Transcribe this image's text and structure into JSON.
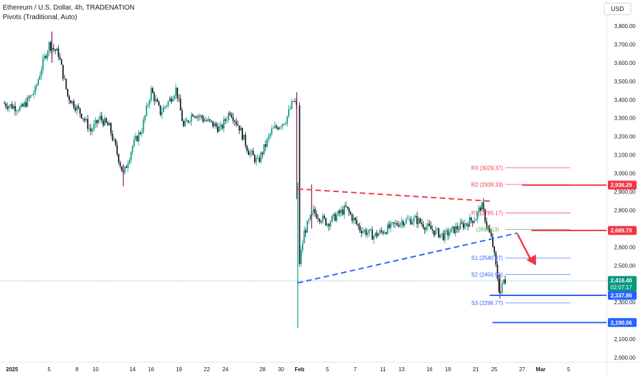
{
  "header": {
    "title": "Ethereum / U.S. Dollar, 4h, TRADENATION",
    "indicator": "Pivots (Traditional, Auto)",
    "currency": "USD"
  },
  "colors": {
    "up": "#26a69a",
    "down": "#ef5350",
    "candle_up": "#089981",
    "candle_down": "#131722",
    "resistance": "#f23645",
    "support": "#2962ff",
    "pivot": "#4caf50"
  },
  "chart_data": {
    "type": "candlestick",
    "ylim": [
      2000,
      3900
    ],
    "y_ticks": [
      2000,
      2100,
      2200,
      2300,
      2400,
      2500,
      2600,
      2700,
      2800,
      2900,
      3000,
      3100,
      3200,
      3300,
      3400,
      3500,
      3600,
      3700,
      3800
    ],
    "y_tick_labels": [
      "2,000.00",
      "2,100.00",
      "2,200.00",
      "2,300.00",
      "2,400.00",
      "2,500.00",
      "2,600.00",
      "2,700.00",
      "2,800.00",
      "2,900.00",
      "3,000.00",
      "3,100.00",
      "3,200.00",
      "3,300.00",
      "3,400.00",
      "3,500.00",
      "3,600.00",
      "3,700.00",
      "3,800.00"
    ],
    "x_ticks": [
      {
        "day": 1,
        "label": "2025"
      },
      {
        "day": 5,
        "label": "5"
      },
      {
        "day": 8,
        "label": "8"
      },
      {
        "day": 10,
        "label": "10"
      },
      {
        "day": 14,
        "label": "14"
      },
      {
        "day": 16,
        "label": "16"
      },
      {
        "day": 19,
        "label": "19"
      },
      {
        "day": 22,
        "label": "22"
      },
      {
        "day": 24,
        "label": "24"
      },
      {
        "day": 28,
        "label": "28"
      },
      {
        "day": 30,
        "label": "30"
      },
      {
        "day": 32,
        "label": "Feb"
      },
      {
        "day": 35,
        "label": "5"
      },
      {
        "day": 38,
        "label": "7"
      },
      {
        "day": 41,
        "label": "11"
      },
      {
        "day": 43,
        "label": "13"
      },
      {
        "day": 46,
        "label": "16"
      },
      {
        "day": 48,
        "label": "19"
      },
      {
        "day": 51,
        "label": "21"
      },
      {
        "day": 53,
        "label": "25"
      },
      {
        "day": 56,
        "label": "27"
      },
      {
        "day": 58,
        "label": "Mar"
      },
      {
        "day": 61,
        "label": "5"
      }
    ],
    "price_path": [
      [
        0,
        3380
      ],
      [
        2,
        3350
      ],
      [
        3.5,
        3450
      ],
      [
        4.2,
        3580
      ],
      [
        5,
        3700
      ],
      [
        6,
        3650
      ],
      [
        7,
        3420
      ],
      [
        8.5,
        3320
      ],
      [
        9.5,
        3230
      ],
      [
        10.5,
        3300
      ],
      [
        11.5,
        3250
      ],
      [
        12.5,
        3080
      ],
      [
        13,
        2990
      ],
      [
        14,
        3150
      ],
      [
        15,
        3240
      ],
      [
        16,
        3450
      ],
      [
        17,
        3330
      ],
      [
        18,
        3400
      ],
      [
        18.7,
        3460
      ],
      [
        19.5,
        3250
      ],
      [
        20.5,
        3330
      ],
      [
        22.5,
        3270
      ],
      [
        23.5,
        3240
      ],
      [
        24.5,
        3340
      ],
      [
        25.5,
        3250
      ],
      [
        26.5,
        3120
      ],
      [
        27.5,
        3060
      ],
      [
        29,
        3230
      ],
      [
        30.5,
        3290
      ],
      [
        31.4,
        3400
      ],
      [
        31.7,
        3350
      ],
      [
        31.8,
        2450
      ],
      [
        32.5,
        2680
      ],
      [
        33.5,
        2790
      ],
      [
        35,
        2730
      ],
      [
        37,
        2810
      ],
      [
        38.5,
        2700
      ],
      [
        40,
        2660
      ],
      [
        41.5,
        2700
      ],
      [
        43,
        2740
      ],
      [
        44.5,
        2750
      ],
      [
        46,
        2700
      ],
      [
        47.5,
        2660
      ],
      [
        48.5,
        2690
      ],
      [
        50,
        2730
      ],
      [
        51,
        2760
      ],
      [
        51.6,
        2830
      ],
      [
        52.2,
        2720
      ],
      [
        52.8,
        2620
      ],
      [
        53.2,
        2480
      ],
      [
        53.6,
        2340
      ],
      [
        54.0,
        2420
      ],
      [
        54.3,
        2416
      ]
    ],
    "wicks": [
      [
        5.3,
        3770,
        3600
      ],
      [
        13,
        2930,
        3050
      ],
      [
        31.7,
        3440,
        2860
      ],
      [
        31.8,
        2950,
        2160
      ],
      [
        33.3,
        2940,
        2700
      ],
      [
        53.6,
        2450,
        2320
      ]
    ],
    "pivots": [
      {
        "name": "R3",
        "label": "R3 (3029.37)",
        "value": 3029.37,
        "color": "#f23645"
      },
      {
        "name": "R2",
        "label": "R2 (2939.33)",
        "value": 2939.33,
        "color": "#f23645"
      },
      {
        "name": "R1",
        "label": "R1 (2785.17)",
        "value": 2785.17,
        "color": "#f23645"
      },
      {
        "name": "P",
        "label": "(2695.13)",
        "value": 2695.13,
        "color": "#4caf50"
      },
      {
        "name": "S1",
        "label": "S1 (2540.97)",
        "value": 2540.97,
        "color": "#2962ff"
      },
      {
        "name": "S2",
        "label": "S2 (2450.93)",
        "value": 2450.93,
        "color": "#2962ff"
      },
      {
        "name": "S3",
        "label": "S3 (2296.77)",
        "value": 2296.77,
        "color": "#2962ff"
      }
    ],
    "horizontal_levels": [
      {
        "name": "resistance-2936",
        "value": 2936.29,
        "label": "2,936.29",
        "color": "#f23645"
      },
      {
        "name": "resistance-2689",
        "value": 2689.79,
        "label": "2,689.79",
        "color": "#f23645"
      },
      {
        "name": "support-2337",
        "value": 2337.86,
        "label": "2,337.86",
        "color": "#2962ff"
      },
      {
        "name": "support-2190",
        "value": 2190.06,
        "label": "2,190.06",
        "color": "#2962ff"
      }
    ],
    "trendlines": [
      {
        "name": "upper-triangle-line",
        "from": [
          31.8,
          2915
        ],
        "to": [
          52.8,
          2848
        ],
        "color": "#f23645"
      },
      {
        "name": "lower-triangle-line",
        "from": [
          31.8,
          2405
        ],
        "to": [
          55.5,
          2676
        ],
        "color": "#2962ff"
      }
    ],
    "arrow": {
      "from": [
        55.5,
        2670
      ],
      "to": [
        57.5,
        2500
      ],
      "color": "#f23645"
    },
    "current_price": {
      "value": 2416.4,
      "label": "2,416.40",
      "countdown": "02:07:17"
    }
  }
}
